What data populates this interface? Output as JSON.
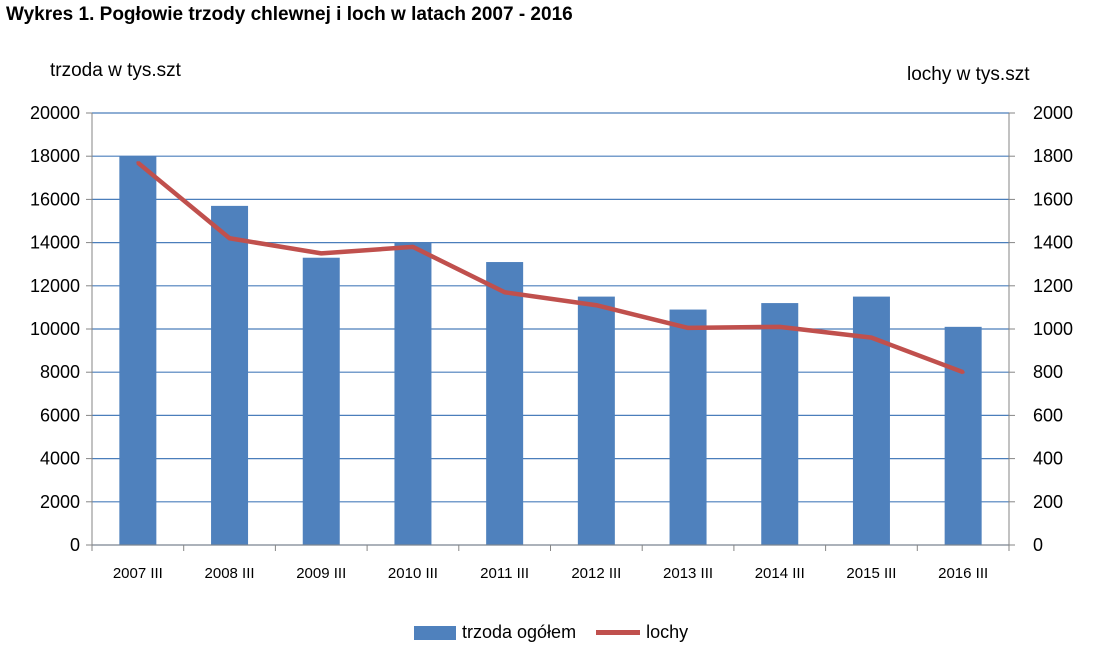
{
  "chart_data": {
    "type": "bar+line",
    "title": "Wykres 1.  Pogłowie trzody chlewnej i loch w latach 2007 - 2016",
    "ylabel": "trzoda w tys.szt",
    "y2label": "lochy w tys.szt",
    "ylim": [
      0,
      20000
    ],
    "y2lim": [
      0,
      2000
    ],
    "yticks": [
      "0",
      "2000",
      "4000",
      "6000",
      "8000",
      "10000",
      "12000",
      "14000",
      "16000",
      "18000",
      "20000"
    ],
    "y2ticks": [
      "0",
      "200",
      "400",
      "600",
      "800",
      "1000",
      "1200",
      "1400",
      "1600",
      "1800",
      "2000"
    ],
    "categories": [
      "2007 III",
      "2008 III",
      "2009 III",
      "2010 III",
      "2011 III",
      "2012 III",
      "2013 III",
      "2014 III",
      "2015 III",
      "2016 III"
    ],
    "series": [
      {
        "name": "trzoda ogółem",
        "type": "bar",
        "axis": "left",
        "color": "#4f81bd",
        "values": [
          18000,
          15700,
          13300,
          14000,
          13100,
          11500,
          10900,
          11200,
          11500,
          10100
        ]
      },
      {
        "name": "lochy",
        "type": "line",
        "axis": "right",
        "color": "#c0504d",
        "values": [
          1770,
          1420,
          1350,
          1380,
          1170,
          1110,
          1005,
          1010,
          960,
          800
        ]
      }
    ],
    "grid": true,
    "legend": "bottom-center"
  }
}
